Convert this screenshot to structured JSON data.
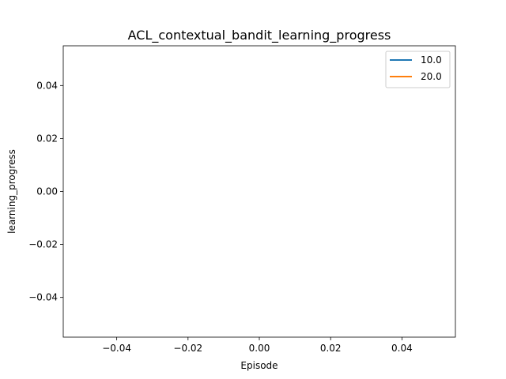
{
  "chart_data": {
    "type": "line",
    "title": "ACL_contextual_bandit_learning_progress",
    "xlabel": "Episode",
    "ylabel": "learning_progress",
    "xlim": [
      -0.055,
      0.055
    ],
    "ylim": [
      -0.055,
      0.055
    ],
    "xticks": [
      -0.04,
      -0.02,
      0.0,
      0.02,
      0.04
    ],
    "xtick_labels": [
      "−0.04",
      "−0.02",
      "0.00",
      "0.02",
      "0.04"
    ],
    "yticks": [
      -0.04,
      -0.02,
      0.0,
      0.02,
      0.04
    ],
    "ytick_labels": [
      "−0.04",
      "−0.02",
      "0.00",
      "0.02",
      "0.04"
    ],
    "grid": false,
    "legend_position": "top-right",
    "series": [
      {
        "name": "10.0",
        "color": "#1f77b4",
        "x": [],
        "y": []
      },
      {
        "name": "20.0",
        "color": "#ff7f0e",
        "x": [],
        "y": []
      }
    ]
  }
}
